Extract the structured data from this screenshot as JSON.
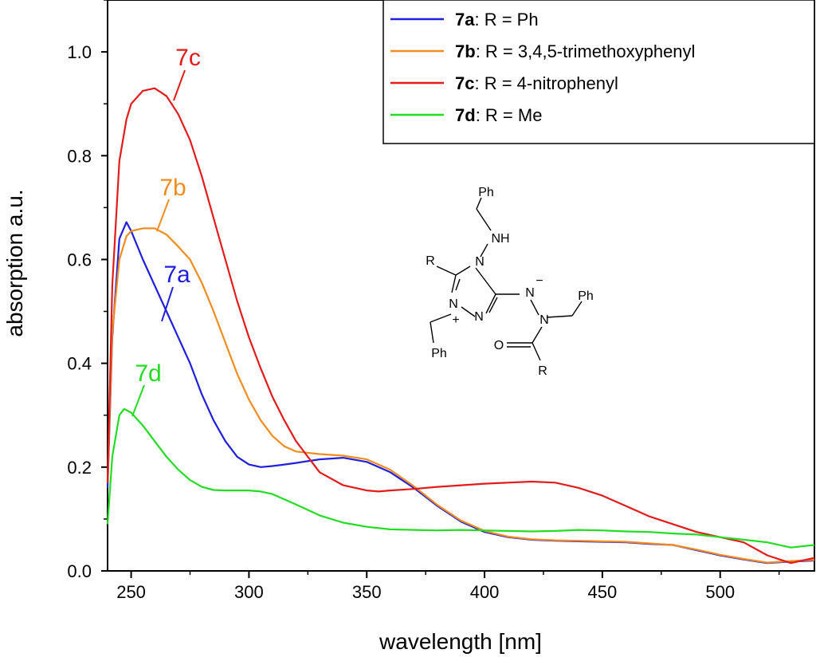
{
  "chart_data": {
    "type": "line",
    "title": "",
    "xlabel": "wavelength [nm]",
    "ylabel": "absorption a.u.",
    "xlim": [
      240,
      540
    ],
    "ylim": [
      0.0,
      1.1
    ],
    "xticks": [
      250,
      300,
      350,
      400,
      450,
      500
    ],
    "yticks": [
      0.0,
      0.2,
      0.4,
      0.6,
      0.8,
      1.0
    ],
    "ytick_labels": [
      "0.0",
      "0.2",
      "0.4",
      "0.6",
      "0.8",
      "1.0"
    ],
    "legend_position": "top-right",
    "series": [
      {
        "name": "7a",
        "legend_bold": "7a",
        "legend_rest": ": R = Ph",
        "color": "#1f1fdd",
        "x": [
          240,
          242,
          245,
          248,
          250,
          255,
          260,
          265,
          270,
          275,
          280,
          285,
          290,
          295,
          300,
          305,
          310,
          315,
          320,
          330,
          340,
          350,
          360,
          370,
          380,
          390,
          400,
          410,
          420,
          430,
          440,
          450,
          460,
          470,
          480,
          490,
          500,
          510,
          520,
          530,
          540
        ],
        "y": [
          0.16,
          0.45,
          0.64,
          0.672,
          0.655,
          0.6,
          0.55,
          0.5,
          0.45,
          0.4,
          0.34,
          0.29,
          0.25,
          0.22,
          0.205,
          0.2,
          0.202,
          0.205,
          0.208,
          0.215,
          0.218,
          0.21,
          0.19,
          0.16,
          0.125,
          0.095,
          0.075,
          0.065,
          0.06,
          0.058,
          0.057,
          0.056,
          0.055,
          0.052,
          0.05,
          0.04,
          0.03,
          0.022,
          0.015,
          0.018,
          0.02
        ]
      },
      {
        "name": "7b",
        "legend_bold": "7b",
        "legend_rest": ": R = 3,4,5-trimethoxyphenyl",
        "color": "#f28c1e",
        "x": [
          240,
          242,
          245,
          248,
          250,
          255,
          260,
          265,
          270,
          275,
          280,
          285,
          290,
          295,
          300,
          305,
          310,
          315,
          320,
          330,
          340,
          350,
          360,
          370,
          380,
          390,
          400,
          410,
          420,
          430,
          440,
          450,
          460,
          470,
          480,
          490,
          500,
          510,
          520,
          530,
          540
        ],
        "y": [
          0.17,
          0.46,
          0.6,
          0.645,
          0.655,
          0.66,
          0.66,
          0.648,
          0.625,
          0.6,
          0.555,
          0.5,
          0.44,
          0.38,
          0.33,
          0.29,
          0.26,
          0.24,
          0.23,
          0.225,
          0.222,
          0.215,
          0.195,
          0.163,
          0.127,
          0.097,
          0.077,
          0.066,
          0.061,
          0.059,
          0.058,
          0.057,
          0.056,
          0.053,
          0.05,
          0.041,
          0.031,
          0.023,
          0.016,
          0.019,
          0.021
        ]
      },
      {
        "name": "7c",
        "legend_bold": "7c",
        "legend_rest": ": R = 4-nitrophenyl",
        "color": "#e31b1b",
        "x": [
          240,
          242,
          245,
          248,
          250,
          255,
          260,
          265,
          270,
          275,
          280,
          285,
          290,
          295,
          300,
          305,
          310,
          315,
          320,
          325,
          330,
          340,
          350,
          355,
          360,
          370,
          380,
          390,
          400,
          410,
          420,
          430,
          440,
          450,
          460,
          470,
          480,
          490,
          500,
          510,
          520,
          530,
          540
        ],
        "y": [
          0.17,
          0.55,
          0.79,
          0.87,
          0.9,
          0.925,
          0.93,
          0.915,
          0.88,
          0.83,
          0.76,
          0.68,
          0.6,
          0.52,
          0.45,
          0.39,
          0.335,
          0.29,
          0.25,
          0.22,
          0.19,
          0.165,
          0.155,
          0.153,
          0.155,
          0.158,
          0.162,
          0.165,
          0.168,
          0.17,
          0.172,
          0.17,
          0.16,
          0.145,
          0.125,
          0.105,
          0.09,
          0.075,
          0.065,
          0.055,
          0.03,
          0.015,
          0.025
        ]
      },
      {
        "name": "7d",
        "legend_bold": "7d",
        "legend_rest": ": R = Me",
        "color": "#22dd22",
        "x": [
          240,
          242,
          245,
          247,
          250,
          255,
          260,
          265,
          270,
          275,
          280,
          285,
          290,
          295,
          300,
          305,
          310,
          320,
          330,
          340,
          350,
          360,
          370,
          380,
          390,
          400,
          410,
          420,
          430,
          440,
          450,
          460,
          470,
          480,
          490,
          500,
          510,
          520,
          530,
          540
        ],
        "y": [
          0.09,
          0.22,
          0.3,
          0.312,
          0.305,
          0.28,
          0.25,
          0.22,
          0.195,
          0.175,
          0.162,
          0.156,
          0.155,
          0.155,
          0.155,
          0.153,
          0.148,
          0.128,
          0.107,
          0.093,
          0.085,
          0.08,
          0.079,
          0.078,
          0.079,
          0.078,
          0.077,
          0.076,
          0.077,
          0.079,
          0.078,
          0.076,
          0.075,
          0.072,
          0.07,
          0.065,
          0.06,
          0.055,
          0.045,
          0.05
        ]
      }
    ],
    "annotations": [
      {
        "text": "7c",
        "series": 2
      },
      {
        "text": "7b",
        "series": 1
      },
      {
        "text": "7a",
        "series": 0
      },
      {
        "text": "7d",
        "series": 3
      }
    ]
  },
  "molecule": {
    "labels": [
      "Ph",
      "NH",
      "R",
      "N",
      "N",
      "N",
      "+",
      "N",
      "−",
      "N",
      "Ph",
      "Ph",
      "O",
      "R"
    ]
  }
}
